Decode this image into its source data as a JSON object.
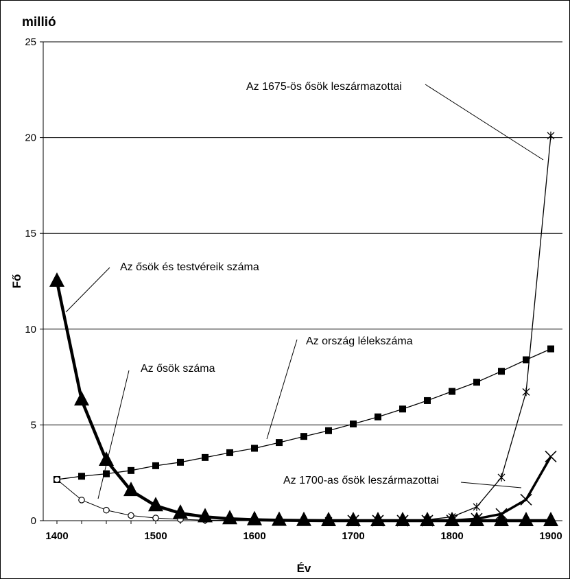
{
  "chart_data": {
    "type": "line",
    "unit_label": "millió",
    "xlabel": "Év",
    "ylabel": "Fő",
    "xlim": [
      1400,
      1900
    ],
    "ylim": [
      0,
      25
    ],
    "xticks": [
      1400,
      1500,
      1600,
      1700,
      1800,
      1900
    ],
    "yticks": [
      0,
      5,
      10,
      15,
      20,
      25
    ],
    "grid": "horizontal",
    "x": [
      1400,
      1425,
      1450,
      1475,
      1500,
      1525,
      1550,
      1575,
      1600,
      1625,
      1650,
      1675,
      1700,
      1725,
      1750,
      1775,
      1800,
      1825,
      1850,
      1875,
      1900
    ],
    "series": [
      {
        "key": "orszag",
        "marker": "square",
        "values": [
          2.15,
          2.32,
          2.45,
          2.62,
          2.87,
          3.05,
          3.3,
          3.55,
          3.78,
          4.08,
          4.4,
          4.7,
          5.05,
          5.42,
          5.83,
          6.27,
          6.75,
          7.23,
          7.8,
          8.4,
          8.97
        ]
      },
      {
        "key": "osok",
        "marker": "circle",
        "values": [
          2.15,
          1.08,
          0.55,
          0.27,
          0.14,
          0.07,
          0.03,
          0.02,
          0.01,
          0.0,
          0.0,
          0.0,
          0.0,
          0.0,
          0.0,
          0.0,
          0.0,
          0.0,
          0.0,
          0.0,
          0.0
        ]
      },
      {
        "key": "testverek",
        "marker": "triangle",
        "values": [
          12.5,
          6.3,
          3.15,
          1.57,
          0.78,
          0.39,
          0.2,
          0.1,
          0.05,
          0.02,
          0.01,
          0.0,
          0.0,
          0.0,
          0.0,
          0.0,
          0.0,
          0.0,
          0.0,
          0.0,
          0.0
        ]
      },
      {
        "key": "l1675",
        "marker": "star",
        "x": [
          1675,
          1700,
          1725,
          1750,
          1775,
          1800,
          1825,
          1850,
          1875,
          1900
        ],
        "values": [
          0.0,
          0.0,
          0.0,
          0.0,
          0.05,
          0.2,
          0.72,
          2.26,
          6.72,
          20.1
        ]
      },
      {
        "key": "l1700",
        "marker": "x",
        "x": [
          1700,
          1725,
          1750,
          1775,
          1800,
          1825,
          1850,
          1875,
          1900
        ],
        "values": [
          0.0,
          0.0,
          0.0,
          0.0,
          0.01,
          0.1,
          0.35,
          1.1,
          3.35
        ]
      }
    ],
    "annotations": [
      {
        "text": "Az 1675-ös ősök leszármazottai",
        "target": "l1675"
      },
      {
        "text": "Az ősök és testvéreik száma",
        "target": "testverek"
      },
      {
        "text": "Az ország lélekszáma",
        "target": "orszag"
      },
      {
        "text": "Az ősök száma",
        "target": "osok"
      },
      {
        "text": "Az 1700-as ősök leszármazottai",
        "target": "l1700"
      }
    ],
    "colors": {
      "line": "#000000",
      "grid": "#000000",
      "background": "#ffffff"
    }
  }
}
